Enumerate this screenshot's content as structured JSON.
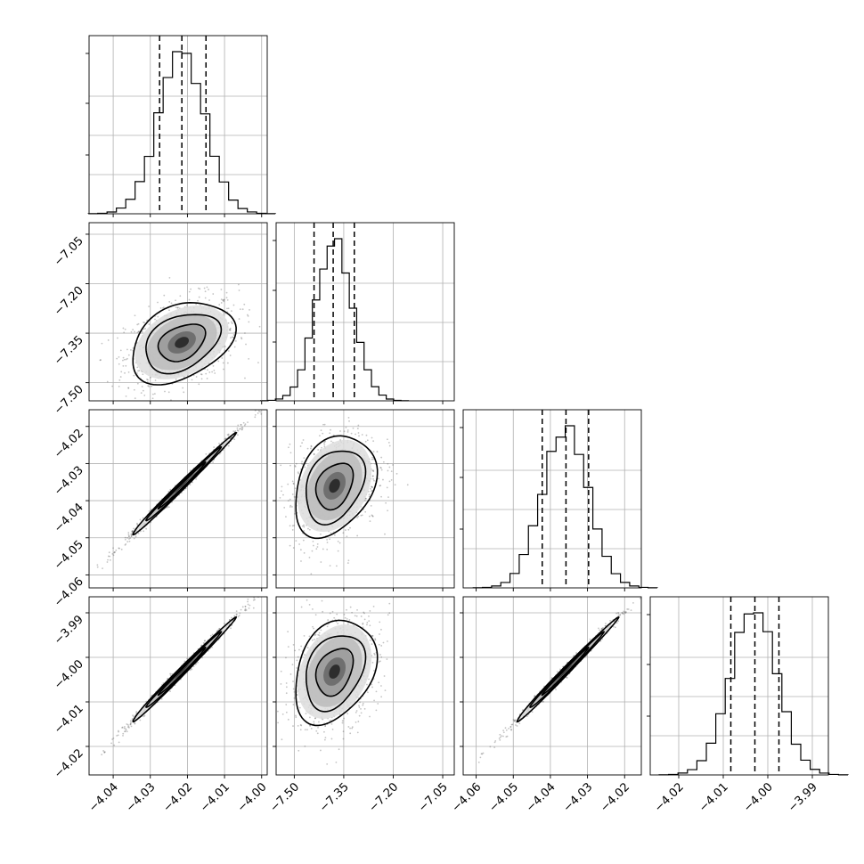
{
  "chart_data": {
    "type": "corner",
    "params": [
      {
        "ticks": [
          -4.04,
          -4.03,
          -4.02,
          -4.01,
          -4.0
        ],
        "tick_labels": [
          "−4.04",
          "−4.03",
          "−4.02",
          "−4.01",
          "−4.00"
        ],
        "range": [
          -4.0465,
          -3.9985
        ],
        "quantiles": [
          -4.0275,
          -4.0215,
          -4.015
        ],
        "hist_peak": -4.0215,
        "hist_sigma": 0.0063
      },
      {
        "ticks": [
          -7.5,
          -7.35,
          -7.2,
          -7.05
        ],
        "tick_labels": [
          "−7.50",
          "−7.35",
          "−7.20",
          "−7.05"
        ],
        "range": [
          -7.555,
          -7.015
        ],
        "quantiles": [
          -7.44,
          -7.382,
          -7.318
        ],
        "hist_peak": -7.378,
        "hist_sigma": 0.056
      },
      {
        "ticks": [
          -4.06,
          -4.05,
          -4.04,
          -4.03,
          -4.02
        ],
        "tick_labels": [
          "−4.06",
          "−4.05",
          "−4.04",
          "−4.03",
          "−4.02"
        ],
        "range": [
          -4.0635,
          -4.0155
        ],
        "quantiles": [
          -4.0422,
          -4.0358,
          -4.0297
        ],
        "hist_peak": -4.036,
        "hist_sigma": 0.0062
      },
      {
        "ticks": [
          -4.02,
          -4.01,
          -4.0,
          -3.99
        ],
        "tick_labels": [
          "−4.02",
          "−4.01",
          "−4.00",
          "−3.99"
        ],
        "range": [
          -4.0264,
          -3.9864
        ],
        "quantiles": [
          -4.0083,
          -4.0029,
          -3.9975
        ],
        "hist_peak": -4.0032,
        "hist_sigma": 0.0053
      }
    ],
    "panels": [
      {
        "row": 1,
        "col": 0,
        "center": [
          -4.0215,
          -7.378
        ],
        "spread": [
          0.0063,
          0.056
        ],
        "corr": 0.35
      },
      {
        "row": 2,
        "col": 0,
        "center": [
          -4.0215,
          -4.036
        ],
        "spread": [
          0.0063,
          0.0062
        ],
        "corr": 0.995
      },
      {
        "row": 2,
        "col": 1,
        "center": [
          -7.378,
          -4.036
        ],
        "spread": [
          0.056,
          0.0062
        ],
        "corr": 0.3
      },
      {
        "row": 3,
        "col": 0,
        "center": [
          -4.0215,
          -4.0032
        ],
        "spread": [
          0.0063,
          0.0053
        ],
        "corr": 0.995
      },
      {
        "row": 3,
        "col": 1,
        "center": [
          -7.378,
          -4.0032
        ],
        "spread": [
          0.056,
          0.0053
        ],
        "corr": 0.3
      },
      {
        "row": 3,
        "col": 2,
        "center": [
          -4.036,
          -4.0032
        ],
        "spread": [
          0.0062,
          0.0053
        ],
        "corr": 0.995
      }
    ],
    "grid": true,
    "colors": {
      "density": "#000000",
      "points": "#555555"
    }
  }
}
